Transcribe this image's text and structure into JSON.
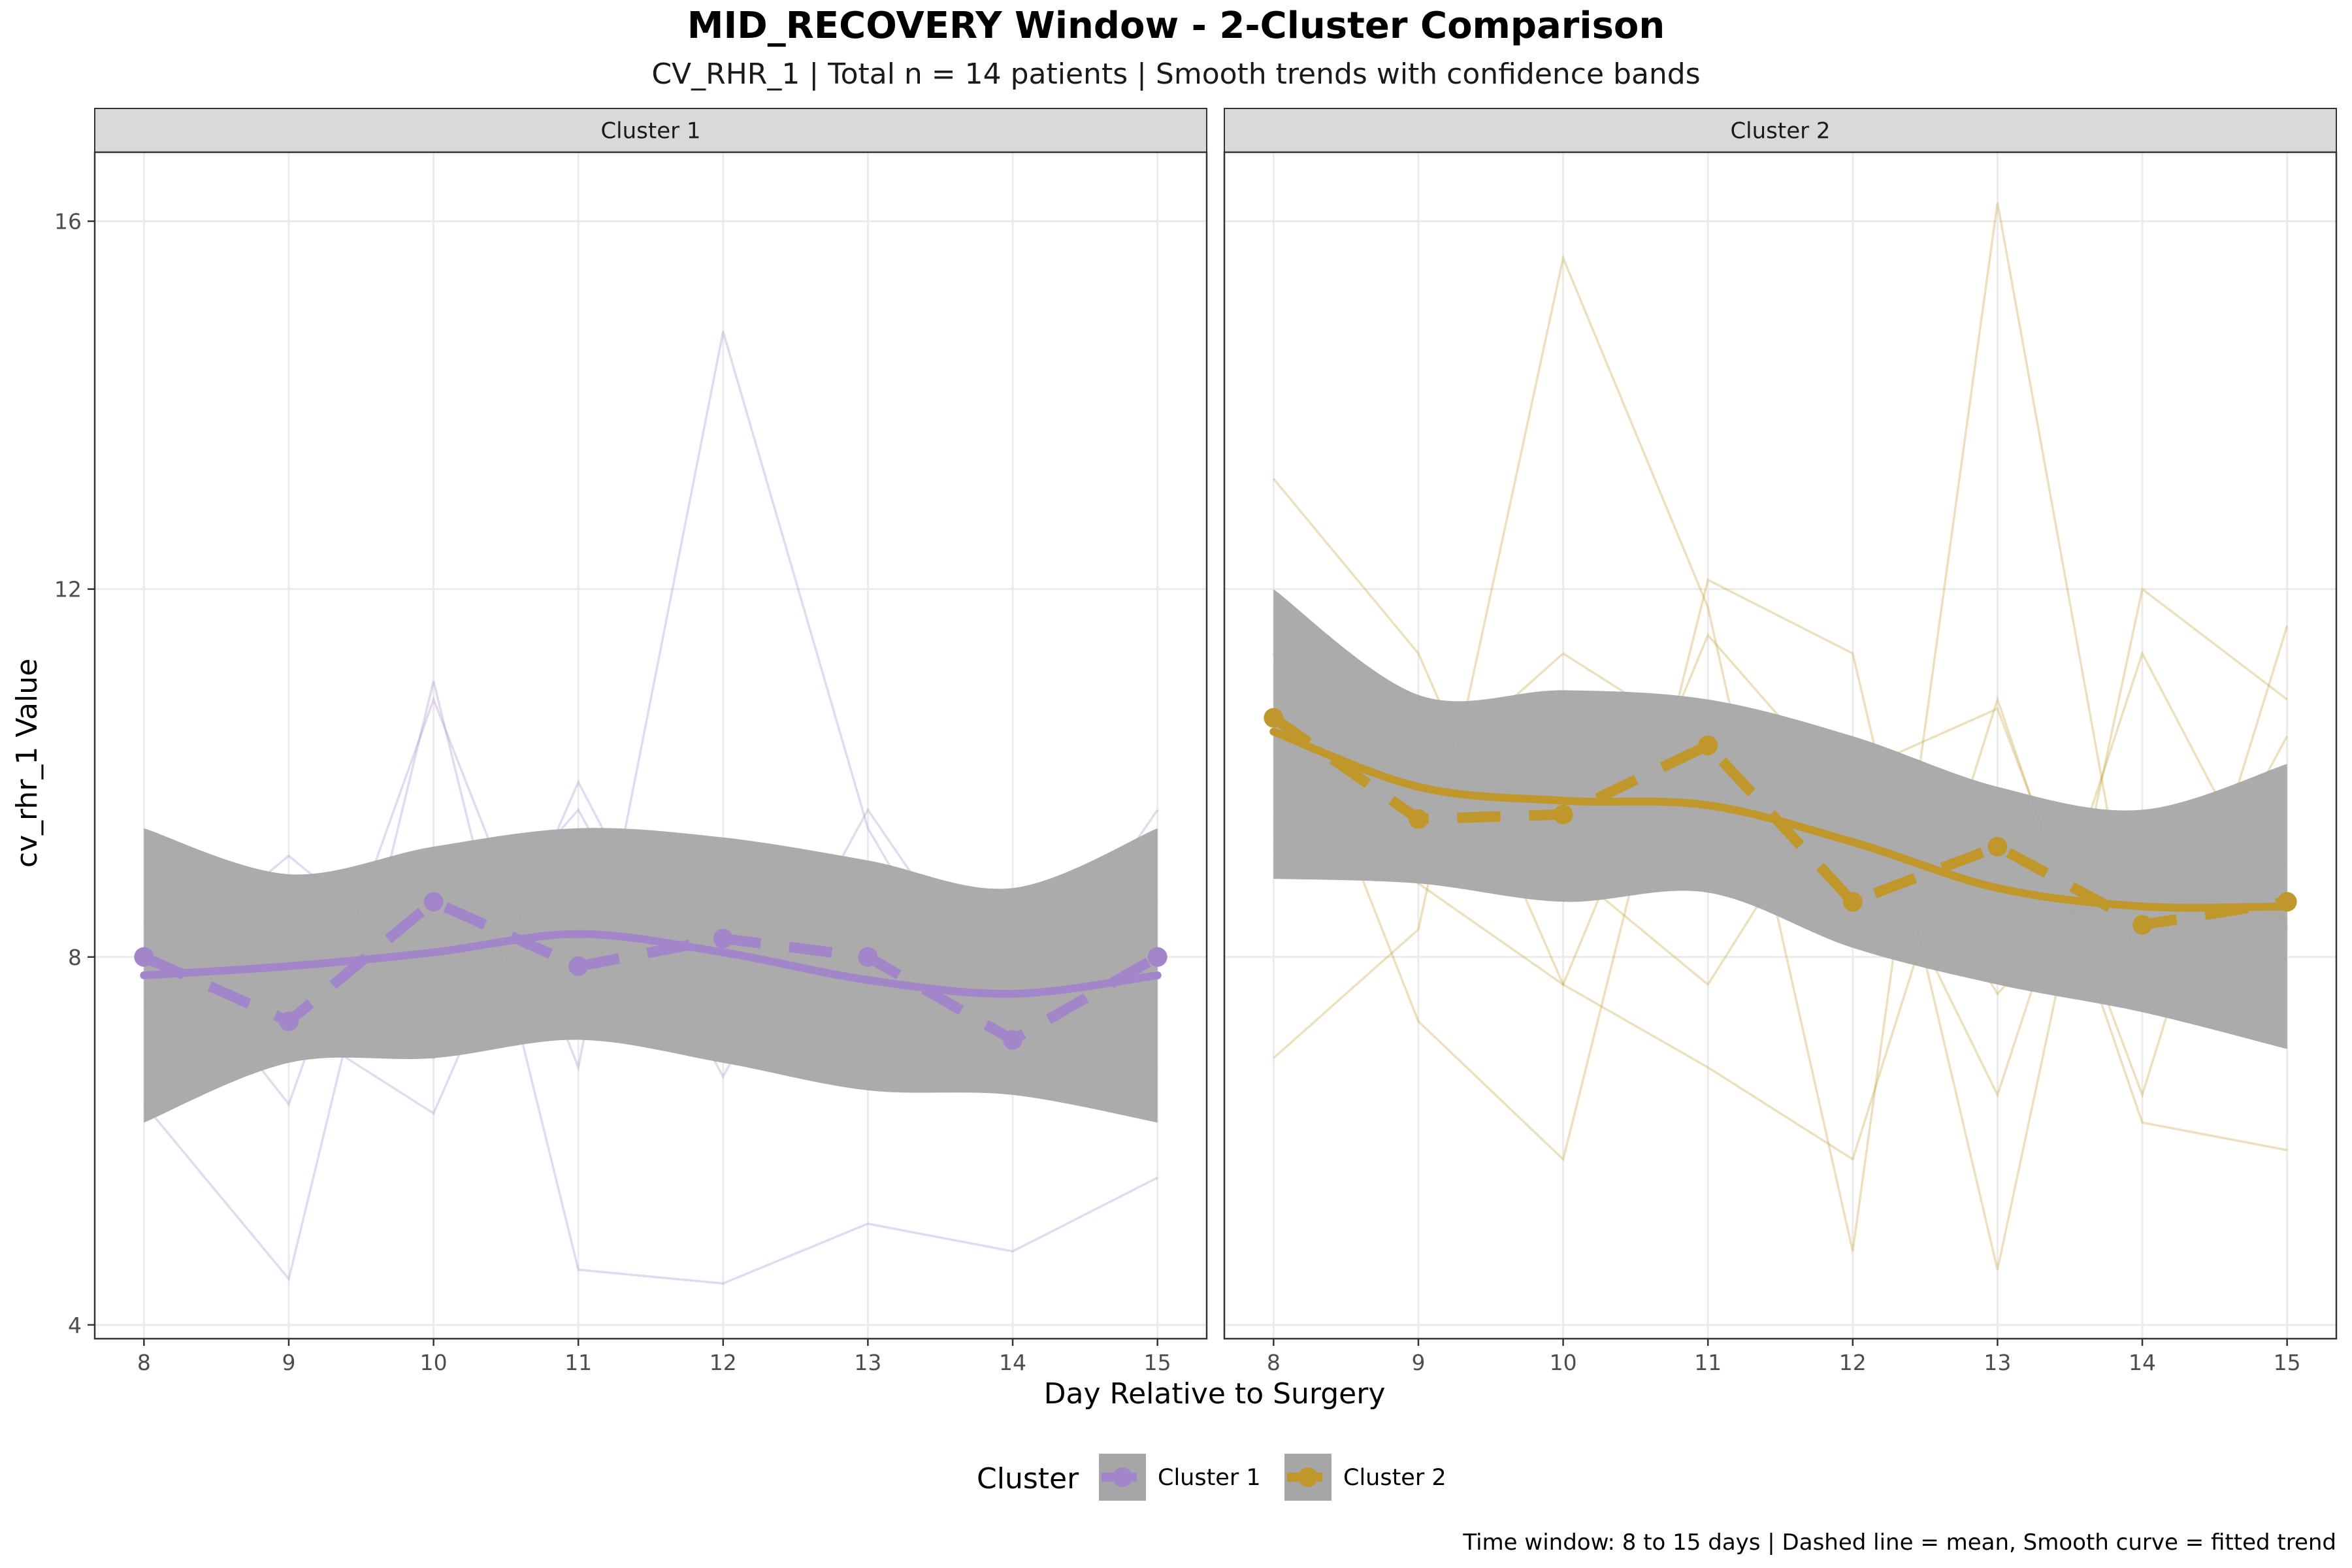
{
  "title": "MID_RECOVERY Window - 2-Cluster Comparison",
  "subtitle": "CV_RHR_1 | Total n = 14 patients | Smooth trends with confidence bands",
  "caption": "Time window: 8 to 15 days | Dashed line = mean, Smooth curve = fitted trend",
  "colors": {
    "cluster1": "#A286C9",
    "cluster2": "#C0972A",
    "band": "#A6A6A6",
    "strip": "#D9D9D9",
    "grid": "#EBEBEB"
  },
  "chart_data": {
    "type": "line",
    "xlabel": "Day Relative to Surgery",
    "ylabel": "cv_rhr_1 Value",
    "x": [
      8,
      9,
      10,
      11,
      12,
      13,
      14,
      15
    ],
    "xlim": [
      7.66,
      15.34
    ],
    "ylim": [
      3.85,
      16.75
    ],
    "xticks": [
      8,
      9,
      10,
      11,
      12,
      13,
      14,
      15
    ],
    "yticks": [
      4,
      8,
      12,
      16
    ],
    "legend": {
      "title": "Cluster",
      "position": "bottom",
      "entries": [
        "Cluster 1",
        "Cluster 2"
      ]
    },
    "panels": [
      {
        "label": "Cluster 1",
        "color_key": "cluster1",
        "mean": [
          8.0,
          7.3,
          8.6,
          7.9,
          8.2,
          8.0,
          7.1,
          8.0
        ],
        "trend": [
          7.8,
          7.9,
          8.05,
          8.25,
          8.05,
          7.75,
          7.6,
          7.8
        ],
        "band_upper": [
          9.4,
          8.9,
          9.2,
          9.4,
          9.3,
          9.05,
          8.75,
          9.4
        ],
        "band_lower": [
          6.2,
          6.85,
          6.9,
          7.1,
          6.85,
          6.55,
          6.5,
          6.2
        ],
        "patients": [
          [
            7.8,
            9.1,
            7.8,
            9.6,
            6.7,
            9.6,
            7.3,
            9.6
          ],
          [
            6.4,
            4.5,
            11.0,
            4.6,
            4.45,
            5.1,
            4.8,
            5.6
          ],
          [
            8.4,
            6.4,
            10.8,
            6.8,
            14.8,
            9.4,
            6.7,
            8.6
          ],
          [
            7.5,
            7.3,
            6.3,
            9.9,
            6.9,
            7.0,
            7.5,
            6.8
          ],
          [
            8.1,
            7.5,
            6.9,
            8.4,
            8.45,
            8.5,
            8.55,
            8.6
          ]
        ]
      },
      {
        "label": "Cluster 2",
        "color_key": "cluster2",
        "mean": [
          10.6,
          9.5,
          9.55,
          10.3,
          8.6,
          9.2,
          8.35,
          8.6
        ],
        "trend": [
          10.45,
          9.85,
          9.7,
          9.65,
          9.25,
          8.75,
          8.55,
          8.55
        ],
        "band_upper": [
          12.0,
          10.85,
          10.9,
          10.8,
          10.4,
          9.85,
          9.6,
          10.1
        ],
        "band_lower": [
          8.85,
          8.8,
          8.6,
          8.7,
          8.1,
          7.7,
          7.4,
          7.0
        ],
        "patients": [
          [
            13.2,
            11.3,
            7.7,
            6.8,
            5.8,
            10.8,
            6.2,
            5.9
          ],
          [
            6.9,
            8.3,
            15.6,
            11.8,
            4.8,
            16.2,
            7.5,
            10.4
          ],
          [
            11.3,
            7.3,
            5.8,
            12.1,
            11.3,
            4.6,
            12.0,
            10.8
          ],
          [
            9.1,
            9.9,
            11.3,
            10.3,
            10.0,
            10.7,
            6.5,
            11.6
          ],
          [
            10.0,
            8.8,
            7.7,
            11.5,
            9.7,
            6.5,
            11.3,
            8.3
          ],
          [
            9.6,
            10.2,
            9.0,
            7.7,
            10.2,
            7.6,
            9.3,
            8.4
          ],
          [
            10.4,
            9.6,
            10.0,
            8.9,
            8.2,
            7.8,
            8.4,
            9.0
          ],
          [
            9.3,
            9.0,
            9.8,
            9.6,
            9.1,
            9.4,
            8.1,
            8.6
          ],
          [
            10.1,
            10.3,
            10.0,
            10.6,
            9.9,
            9.1,
            9.0,
            8.4
          ]
        ]
      }
    ]
  }
}
